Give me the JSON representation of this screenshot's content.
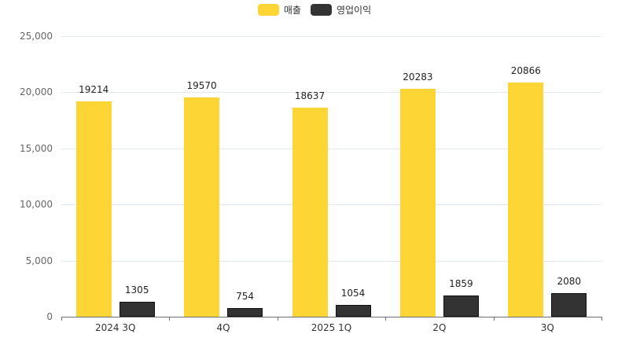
{
  "chart_data": {
    "type": "bar",
    "title": "",
    "xlabel": "",
    "ylabel": "",
    "categories": [
      "2024 3Q",
      "4Q",
      "2025 1Q",
      "2Q",
      "3Q"
    ],
    "series": [
      {
        "name": "매출",
        "color": "#fdd535",
        "values": [
          19214,
          19570,
          18637,
          20283,
          20866
        ]
      },
      {
        "name": "영업이익",
        "color": "#333333",
        "values": [
          1305,
          754,
          1054,
          1859,
          2080
        ]
      }
    ],
    "ylim": [
      0,
      25000
    ],
    "yticks": [
      "0",
      "5,000",
      "10,000",
      "15,000",
      "20,000",
      "25,000"
    ],
    "grid": true,
    "legend_position": "top"
  },
  "legend": {
    "items": [
      {
        "label": "매출",
        "color": "#fdd535"
      },
      {
        "label": "영업이익",
        "color": "#333333"
      }
    ]
  }
}
